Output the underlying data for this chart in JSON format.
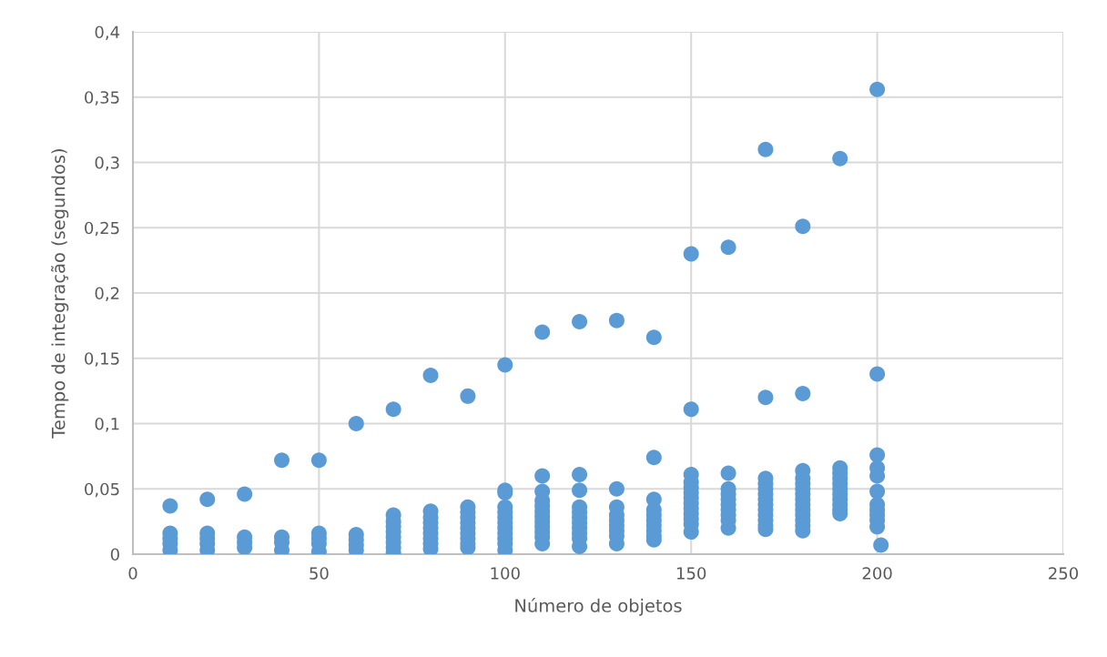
{
  "chart_data": {
    "type": "scatter",
    "xlabel": "Número de objetos",
    "ylabel": "Tempo de integração (segundos)",
    "series": [
      {
        "color": "#5b9bd5",
        "x": [
          10,
          10,
          10,
          10,
          10,
          20,
          20,
          20,
          20,
          20,
          30,
          30,
          30,
          30,
          40,
          40,
          40,
          40,
          50,
          50,
          50,
          50,
          50,
          60,
          60,
          60,
          60,
          60,
          70,
          70,
          70,
          70,
          70,
          70,
          70,
          70,
          70,
          80,
          80,
          80,
          80,
          80,
          80,
          80,
          80,
          80,
          90,
          90,
          90,
          90,
          90,
          90,
          90,
          90,
          90,
          90,
          100,
          100,
          100,
          100,
          100,
          100,
          100,
          100,
          100,
          100,
          100,
          100,
          110,
          110,
          110,
          110,
          110,
          110,
          110,
          110,
          110,
          110,
          110,
          110,
          120,
          120,
          120,
          120,
          120,
          120,
          120,
          120,
          120,
          120,
          120,
          130,
          130,
          130,
          130,
          130,
          130,
          130,
          130,
          130,
          140,
          140,
          140,
          140,
          140,
          140,
          140,
          140,
          140,
          140,
          150,
          150,
          150,
          150,
          150,
          150,
          150,
          150,
          150,
          150,
          150,
          150,
          150,
          160,
          160,
          160,
          160,
          160,
          160,
          160,
          160,
          160,
          160,
          170,
          170,
          170,
          170,
          170,
          170,
          170,
          170,
          170,
          170,
          170,
          170,
          170,
          180,
          180,
          180,
          180,
          180,
          180,
          180,
          180,
          180,
          180,
          180,
          180,
          180,
          180,
          190,
          190,
          190,
          190,
          190,
          190,
          190,
          190,
          190,
          190,
          190,
          200,
          200,
          200,
          200,
          200,
          200,
          200,
          200,
          200,
          200,
          200,
          201
        ],
        "values": [
          0.037,
          0.016,
          0.012,
          0.008,
          0.003,
          0.042,
          0.016,
          0.012,
          0.008,
          0.003,
          0.046,
          0.013,
          0.009,
          0.005,
          0.072,
          0.013,
          0.009,
          0.003,
          0.072,
          0.016,
          0.012,
          0.008,
          0.002,
          0.1,
          0.015,
          0.011,
          0.007,
          0.003,
          0.111,
          0.03,
          0.025,
          0.021,
          0.017,
          0.013,
          0.009,
          0.005,
          0.001,
          0.137,
          0.033,
          0.028,
          0.024,
          0.02,
          0.016,
          0.012,
          0.008,
          0.004,
          0.121,
          0.036,
          0.032,
          0.028,
          0.024,
          0.02,
          0.016,
          0.012,
          0.008,
          0.005,
          0.145,
          0.049,
          0.047,
          0.036,
          0.032,
          0.028,
          0.024,
          0.02,
          0.016,
          0.012,
          0.008,
          0.003,
          0.17,
          0.06,
          0.048,
          0.041,
          0.037,
          0.033,
          0.029,
          0.025,
          0.021,
          0.017,
          0.013,
          0.008,
          0.178,
          0.061,
          0.049,
          0.036,
          0.032,
          0.028,
          0.024,
          0.02,
          0.016,
          0.012,
          0.006,
          0.179,
          0.05,
          0.036,
          0.03,
          0.026,
          0.022,
          0.018,
          0.014,
          0.008,
          0.166,
          0.074,
          0.042,
          0.034,
          0.03,
          0.026,
          0.022,
          0.018,
          0.014,
          0.011,
          0.23,
          0.111,
          0.061,
          0.055,
          0.051,
          0.047,
          0.043,
          0.039,
          0.035,
          0.031,
          0.027,
          0.023,
          0.017,
          0.235,
          0.062,
          0.05,
          0.046,
          0.042,
          0.038,
          0.034,
          0.03,
          0.026,
          0.02,
          0.31,
          0.12,
          0.058,
          0.054,
          0.05,
          0.046,
          0.042,
          0.038,
          0.034,
          0.03,
          0.026,
          0.022,
          0.019,
          0.251,
          0.123,
          0.064,
          0.058,
          0.054,
          0.05,
          0.046,
          0.042,
          0.038,
          0.034,
          0.03,
          0.026,
          0.022,
          0.018,
          0.303,
          0.066,
          0.062,
          0.058,
          0.054,
          0.05,
          0.046,
          0.042,
          0.038,
          0.034,
          0.031,
          0.356,
          0.138,
          0.076,
          0.066,
          0.06,
          0.048,
          0.038,
          0.034,
          0.03,
          0.026,
          0.021,
          0.007
        ]
      }
    ],
    "marker": "circle",
    "grid": true,
    "xlim": [
      0,
      250
    ],
    "xticks": [
      0,
      50,
      100,
      150,
      200,
      250
    ],
    "ylim": [
      0,
      0.4
    ],
    "yticks": [
      0,
      {
        "value": 0.05,
        "label": "0,05"
      },
      {
        "value": 0.1,
        "label": "0,1"
      },
      {
        "value": 0.15,
        "label": "0,15"
      },
      {
        "value": 0.2,
        "label": "0,2"
      },
      {
        "value": 0.25,
        "label": "0,25"
      },
      {
        "value": 0.3,
        "label": "0,3"
      },
      {
        "value": 0.35,
        "label": "0,35"
      },
      {
        "value": 0.4,
        "label": "0,4"
      }
    ]
  }
}
